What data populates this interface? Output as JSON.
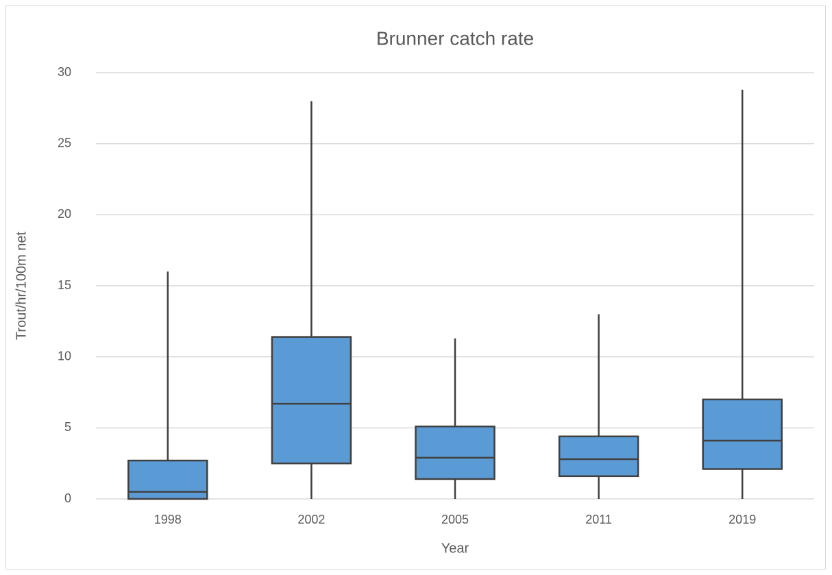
{
  "chart_data": {
    "type": "box",
    "title": "Brunner catch rate",
    "x_label": "Year",
    "y_label": "Trout/hr/100m net",
    "categories": [
      "1998",
      "2002",
      "2005",
      "2011",
      "2019"
    ],
    "min": [
      0,
      0,
      0,
      0,
      0
    ],
    "q1": [
      0,
      2.5,
      1.4,
      1.6,
      2.1
    ],
    "median": [
      0.5,
      6.7,
      2.9,
      2.8,
      4.1
    ],
    "q3": [
      2.7,
      11.4,
      5.1,
      4.4,
      7.0
    ],
    "max": [
      16,
      28,
      11.3,
      13,
      28.8
    ],
    "color": "#5b9bd5",
    "line_color": "#404040",
    "ylim": [
      0,
      30
    ],
    "yticks": [
      0,
      5,
      10,
      15,
      20,
      25,
      30
    ],
    "grid": true
  }
}
